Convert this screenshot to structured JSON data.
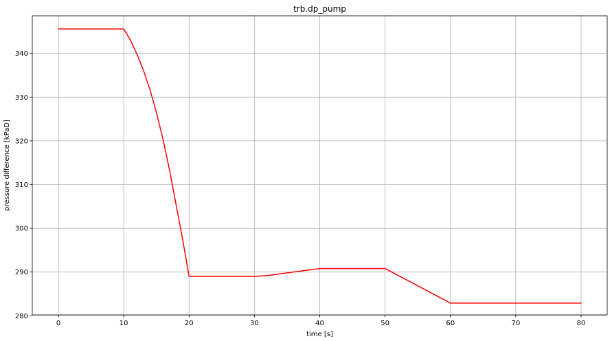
{
  "chart_data": {
    "type": "line",
    "title": "trb.dp_pump",
    "xlabel": "time [s]",
    "ylabel": "pressure difference [kPaD]",
    "xlim": [
      -4,
      84
    ],
    "ylim": [
      280.2,
      348.6
    ],
    "xticks": [
      0,
      10,
      20,
      30,
      40,
      50,
      60,
      70,
      80
    ],
    "yticks": [
      280,
      290,
      300,
      310,
      320,
      330,
      340
    ],
    "grid": true,
    "series": [
      {
        "color": "#ff0000",
        "x": [
          0,
          10,
          11,
          12,
          13,
          14,
          15,
          16,
          17,
          18,
          19,
          20,
          30,
          32,
          34,
          36,
          38,
          40,
          50,
          60,
          80
        ],
        "y": [
          345.6,
          345.6,
          343.1,
          339.9,
          336.2,
          331.8,
          326.5,
          320.4,
          313.4,
          305.5,
          297.6,
          289.0,
          289.0,
          289.2,
          289.6,
          290.0,
          290.4,
          290.8,
          290.8,
          282.9,
          282.9
        ]
      }
    ]
  }
}
